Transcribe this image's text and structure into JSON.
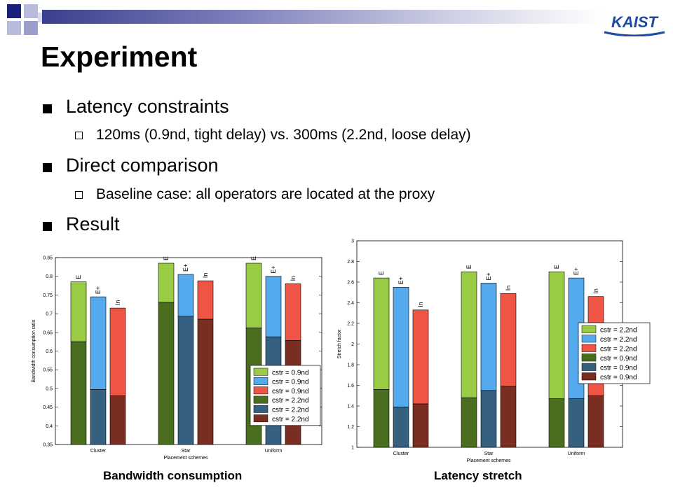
{
  "slide": {
    "title": "Experiment",
    "bullets": [
      {
        "text": "Latency constraints",
        "sub": [
          "120ms (0.9nd, tight delay) vs. 300ms (2.2nd, loose delay)"
        ]
      },
      {
        "text": "Direct comparison",
        "sub": [
          "Baseline case: all operators are located at the proxy"
        ]
      },
      {
        "text": "Result",
        "sub": []
      }
    ],
    "logo_text": "KAIST",
    "captions": [
      "Bandwidth consumption",
      "Latency stretch"
    ]
  },
  "colors": {
    "light_green": "#99cc44",
    "light_blue": "#55aaee",
    "light_red": "#ee5544",
    "dark_green": "#4a6e1e",
    "dark_blue": "#36607f",
    "dark_red": "#7a2e22"
  },
  "chart_data": [
    {
      "type": "bar",
      "title": "",
      "xlabel": "Placement schemes",
      "ylabel": "Bandwidth consumption ratio",
      "ylim": [
        0.35,
        0.85
      ],
      "yticks": [
        0.35,
        0.4,
        0.45,
        0.5,
        0.55,
        0.6,
        0.65,
        0.7,
        0.75,
        0.8,
        0.85
      ],
      "categories": [
        "Cluster",
        "Star",
        "Uniform"
      ],
      "bar_labels": [
        "E",
        "E+",
        "In"
      ],
      "series": [
        {
          "name": "cstr = 0.9nd",
          "values": [
            [
              0.785,
              0.745,
              0.715
            ],
            [
              0.835,
              0.805,
              0.788
            ],
            [
              0.835,
              0.8,
              0.78
            ]
          ]
        },
        {
          "name": "cstr = 2.2nd",
          "values": [
            [
              0.625,
              0.497,
              0.48
            ],
            [
              0.73,
              0.693,
              0.685
            ],
            [
              0.662,
              0.638,
              0.628
            ]
          ]
        }
      ],
      "legend": {
        "position": "bottom-right",
        "entries": [
          "cstr = 0.9nd",
          "cstr = 0.9nd",
          "cstr = 0.9nd",
          "cstr = 2.2nd",
          "cstr = 2.2nd",
          "cstr = 2.2nd"
        ]
      }
    },
    {
      "type": "bar",
      "title": "",
      "xlabel": "Placement schemes",
      "ylabel": "Stretch factor",
      "ylim": [
        1,
        3
      ],
      "yticks": [
        1,
        1.2,
        1.4,
        1.6,
        1.8,
        2,
        2.2,
        2.4,
        2.6,
        2.8,
        3
      ],
      "categories": [
        "Cluster",
        "Star",
        "Uniform"
      ],
      "bar_labels": [
        "E",
        "E+",
        "In"
      ],
      "series": [
        {
          "name": "cstr = 2.2nd",
          "values": [
            [
              2.64,
              2.55,
              2.33
            ],
            [
              2.7,
              2.59,
              2.49
            ],
            [
              2.7,
              2.64,
              2.46
            ]
          ]
        },
        {
          "name": "cstr = 0.9nd",
          "values": [
            [
              1.56,
              1.39,
              1.42
            ],
            [
              1.48,
              1.55,
              1.59
            ],
            [
              1.47,
              1.47,
              1.5
            ]
          ]
        }
      ],
      "legend": {
        "position": "right",
        "entries": [
          "cstr = 2.2nd",
          "cstr = 2.2nd",
          "cstr = 2.2nd",
          "cstr = 0.9nd",
          "cstr = 0.9nd",
          "cstr = 0.9nd"
        ]
      }
    }
  ]
}
